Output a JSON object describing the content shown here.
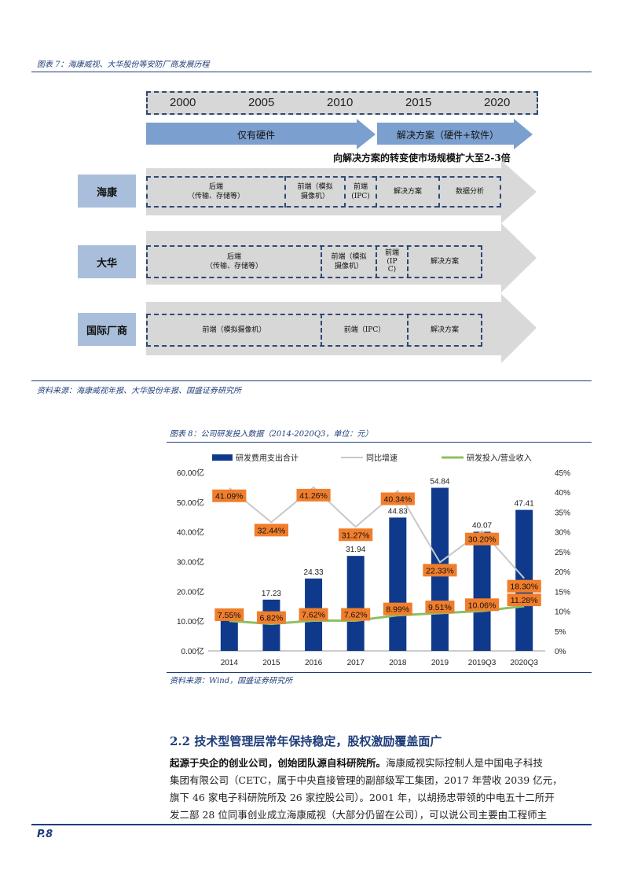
{
  "figure7": {
    "caption": "图表 7：海康威视、大华股份等安防厂商发展历程",
    "years": [
      "2000",
      "2005",
      "2010",
      "2015",
      "2020"
    ],
    "phase1": "仅有硬件",
    "phase2": "解决方案（硬件+软件）",
    "note": "向解决方案的转变使市场规模扩大至2-3倍",
    "rows": [
      {
        "label": "海康",
        "cells": [
          "后端\n（传输、存储等）",
          "前端（模拟\n摄像机）",
          "前端\n(IPC)",
          "解决方案",
          "数据分析"
        ]
      },
      {
        "label": "大华",
        "cells": [
          "后端\n（传输、存储等）",
          "前端（模拟\n摄像机）",
          "前端\n(IP\nC)",
          "解决方案"
        ]
      },
      {
        "label": "国际厂商",
        "cells": [
          "前端（模拟摄像机）",
          "前端（IPC）",
          "解决方案"
        ]
      }
    ],
    "source": "资料来源：海康威视年报、大华股份年报、国盛证券研究所"
  },
  "figure8": {
    "caption": "图表 8：公司研发投入数据（2014-2020Q3，单位：元）",
    "source": "资料来源：Wind，国盛证券研究所"
  },
  "chart_data": {
    "type": "bar",
    "categories": [
      "2014",
      "2015",
      "2016",
      "2017",
      "2018",
      "2019",
      "2019Q3",
      "2020Q3"
    ],
    "series": [
      {
        "name": "研发费用支出合计",
        "type": "bar",
        "axis": "left",
        "values": [
          13.0,
          17.23,
          24.33,
          31.94,
          44.83,
          54.84,
          40.07,
          47.41
        ],
        "labels": [
          "",
          "17.23",
          "24.33",
          "31.94",
          "44.83",
          "54.84",
          "40.07",
          "47.41"
        ]
      },
      {
        "name": "同比增速",
        "type": "line",
        "axis": "right",
        "values": [
          41.09,
          32.44,
          41.26,
          31.27,
          40.34,
          22.33,
          30.2,
          18.3
        ],
        "labels": [
          "41.09%",
          "32.44%",
          "41.26%",
          "31.27%",
          "40.34%",
          "22.33%",
          "30.20%",
          "18.30%"
        ]
      },
      {
        "name": "研发投入/营业收入",
        "type": "line",
        "axis": "right",
        "values": [
          7.55,
          6.82,
          7.62,
          7.62,
          8.99,
          9.51,
          10.06,
          11.28
        ],
        "labels": [
          "7.55%",
          "6.82%",
          "7.62%",
          "7.62%",
          "8.99%",
          "9.51%",
          "10.06%",
          "11.28%"
        ]
      }
    ],
    "ylim": [
      0,
      60
    ],
    "y_ticks": [
      "0.00亿",
      "10.00亿",
      "20.00亿",
      "30.00亿",
      "40.00亿",
      "50.00亿",
      "60.00亿"
    ],
    "y2lim": [
      0,
      45
    ],
    "y2_ticks": [
      "0%",
      "5%",
      "10%",
      "15%",
      "20%",
      "25%",
      "30%",
      "35%",
      "40%",
      "45%"
    ],
    "legend": "top",
    "colors": {
      "bar": "#0f3a8c",
      "growth": "#c8c8c8",
      "ratio": "#8cc063",
      "label_bg": "#f07e2c"
    }
  },
  "section": {
    "title": "2.2 技术型管理层常年保持稳定，股权激励覆盖面广",
    "lead": "起源于央企的创业公司，创始团队源自科研院所。",
    "lines": [
      "海康威视实际控制人是中国电子科技",
      "集团有限公司（CETC，属于中央直接管理的副部级军工集团，2017 年营收 2039 亿元，",
      "旗下 46 家电子科研院所及 26 家控股公司）。2001 年，以胡扬忠带领的中电五十二所开",
      "发二部 28 位同事创业成立海康威视（大部分仍留在公司），可以说公司主要由工程师主"
    ]
  },
  "footer": {
    "page": "P.8"
  }
}
